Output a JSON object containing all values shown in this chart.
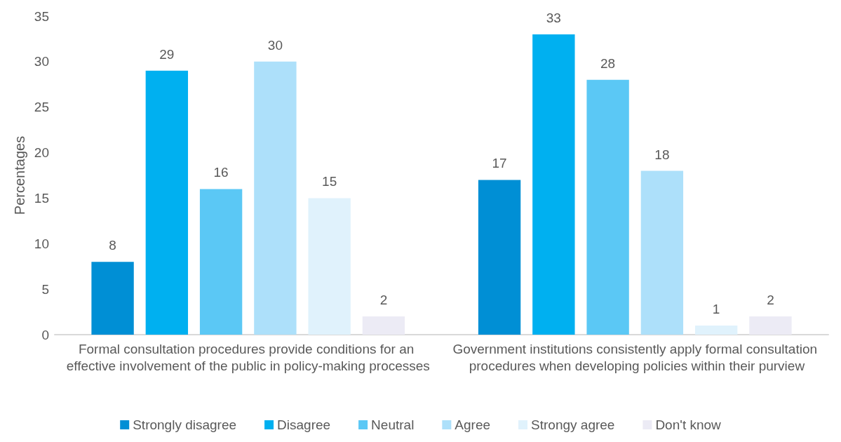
{
  "chart_data": {
    "type": "bar",
    "ylabel": "Percentages",
    "categories": [
      "Formal consultation procedures provide conditions for an effective involvement of the public in policy-making processes",
      "Government institutions consistently apply formal consultation procedures when developing policies within their purview"
    ],
    "series": [
      {
        "name": "Strongly disagree",
        "color": "#008fd5",
        "values": [
          8,
          17
        ]
      },
      {
        "name": "Disagree",
        "color": "#00b0f0",
        "values": [
          29,
          33
        ]
      },
      {
        "name": "Neutral",
        "color": "#5bc8f5",
        "values": [
          16,
          28
        ]
      },
      {
        "name": "Agree",
        "color": "#ade0fa",
        "values": [
          30,
          18
        ]
      },
      {
        "name": "Strongy agree",
        "color": "#e0f2fc",
        "values": [
          15,
          1
        ]
      },
      {
        "name": "Don't know",
        "color": "#ecebf5",
        "values": [
          2,
          2
        ]
      }
    ],
    "ylim": [
      0,
      35
    ],
    "yticks": [
      0,
      5,
      10,
      15,
      20,
      25,
      30,
      35
    ],
    "grid": false,
    "legend": "bottom",
    "data_labels": true
  }
}
